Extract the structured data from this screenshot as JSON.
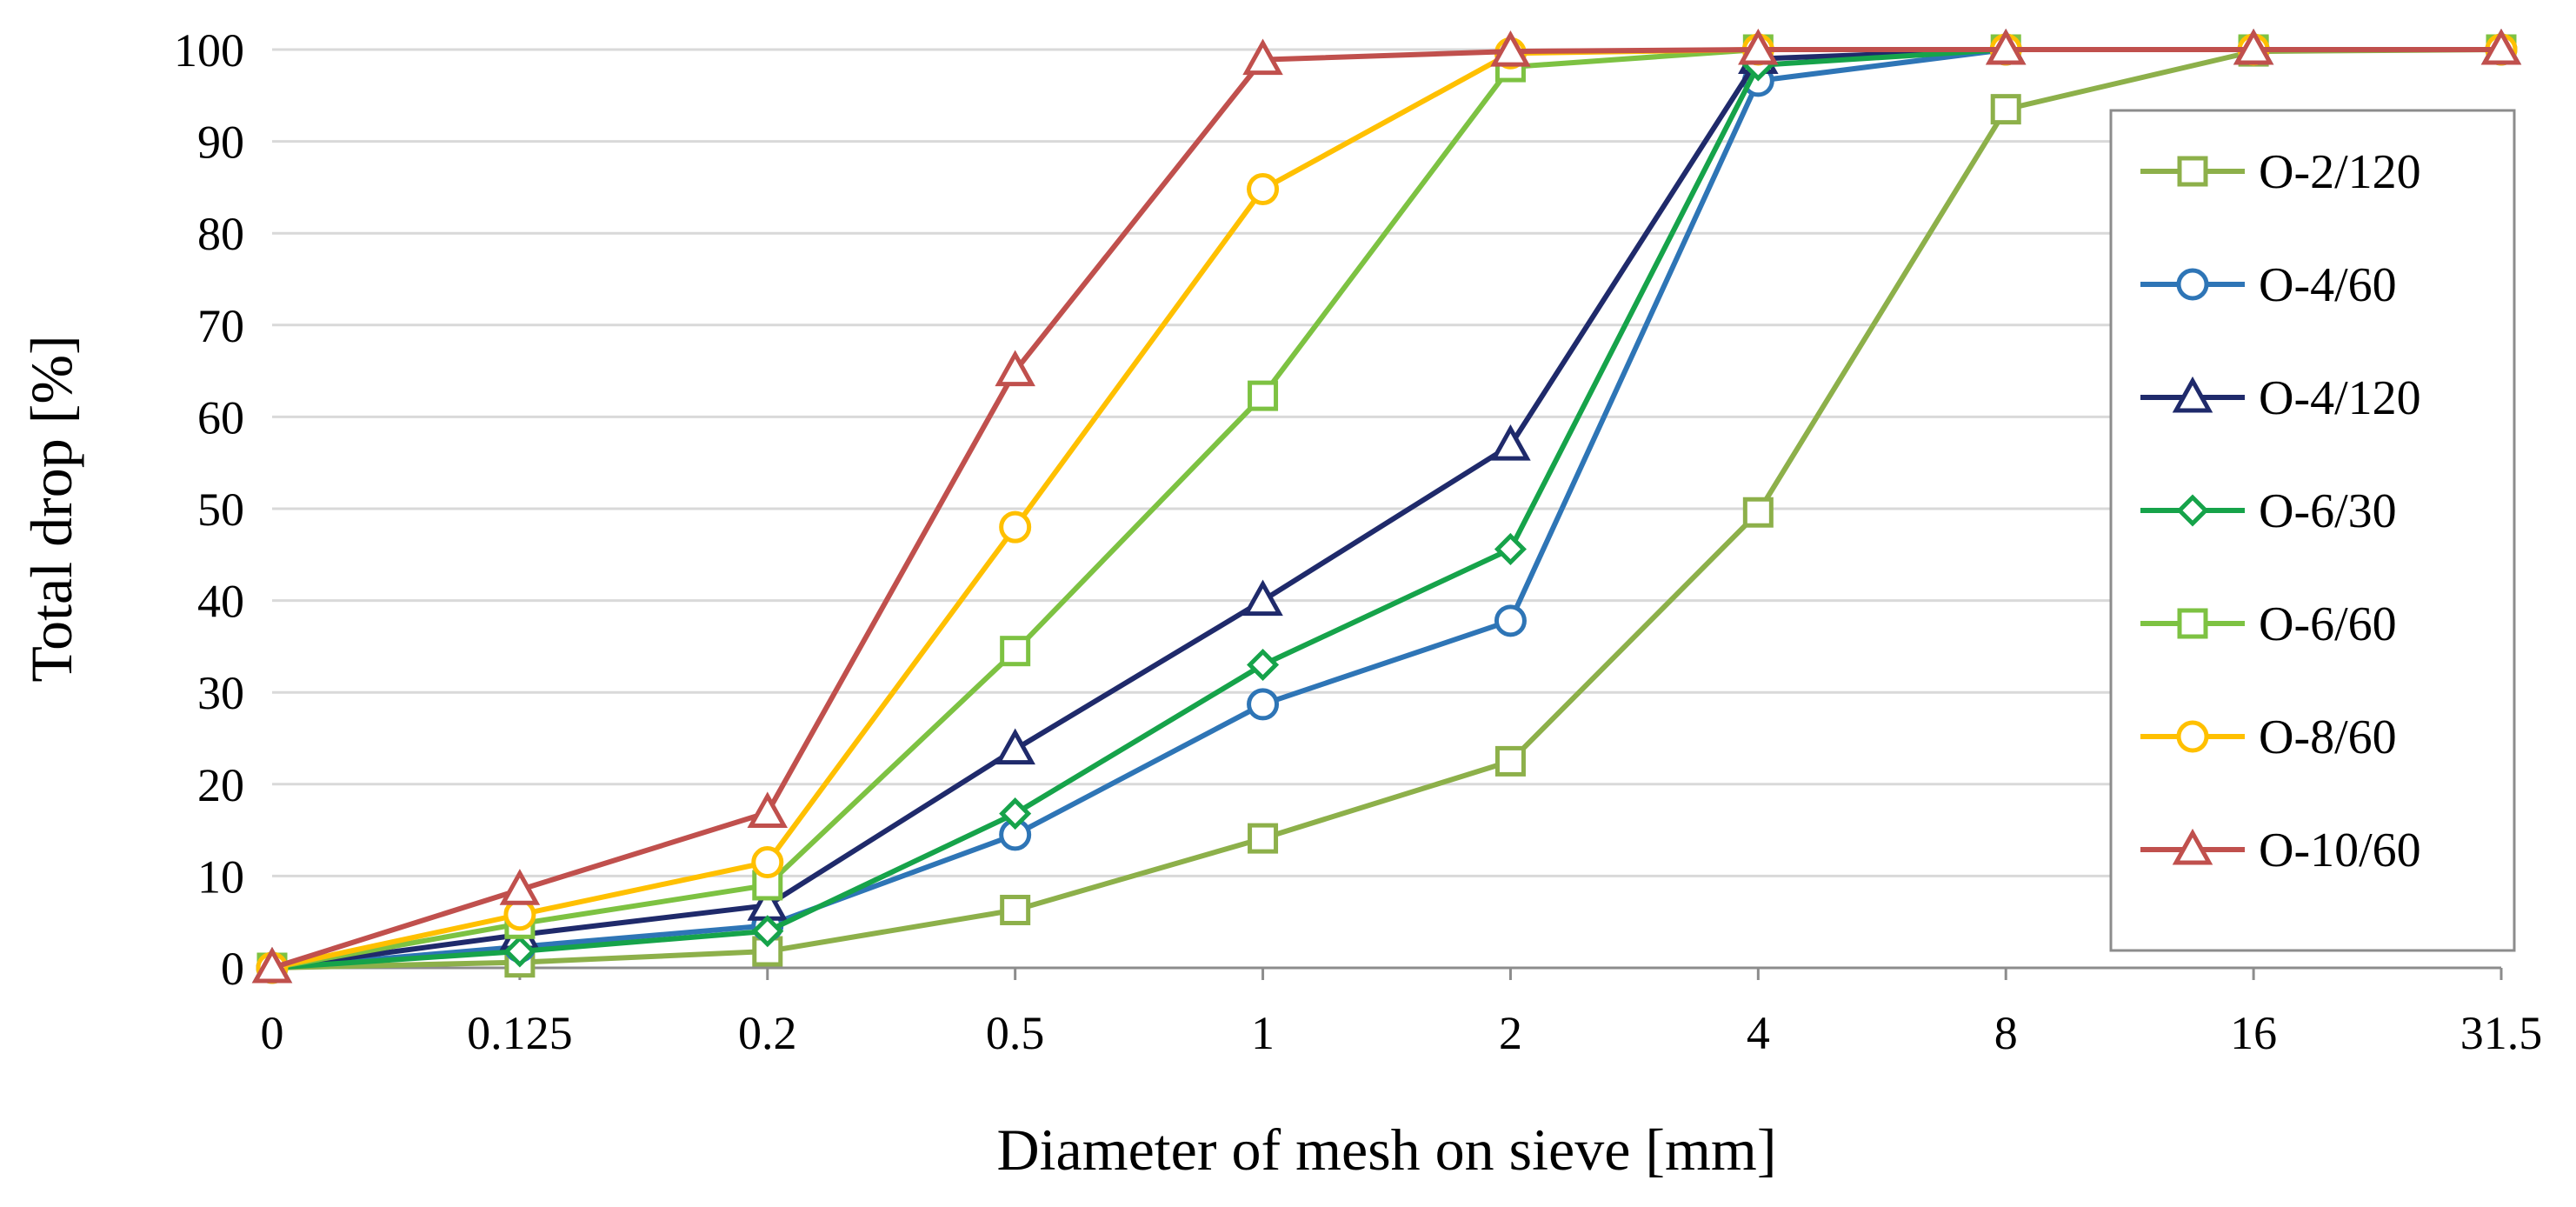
{
  "chart_data": {
    "type": "line",
    "title": "",
    "xlabel": "Diameter of mesh on sieve [mm]",
    "ylabel": "Total drop [%]",
    "categories": [
      "0",
      "0.125",
      "0.2",
      "0.5",
      "1",
      "2",
      "4",
      "8",
      "16",
      "31.5"
    ],
    "ylim": [
      0,
      100
    ],
    "yticks": [
      "0",
      "10",
      "20",
      "30",
      "40",
      "50",
      "60",
      "70",
      "80",
      "90",
      "100"
    ],
    "grid": true,
    "legend_position": "right",
    "series": [
      {
        "name": "O-2/120",
        "color": "#8db04a",
        "marker": "square",
        "values": [
          0,
          0.6,
          1.8,
          6.3,
          14.1,
          22.5,
          49.6,
          93.5,
          99.8,
          100
        ]
      },
      {
        "name": "O-4/60",
        "color": "#2e75b6",
        "marker": "circle",
        "values": [
          0,
          2.3,
          4.6,
          14.5,
          28.7,
          37.8,
          96.6,
          100,
          100,
          100
        ]
      },
      {
        "name": "O-4/120",
        "color": "#1f2a6b",
        "marker": "triangle",
        "values": [
          0,
          3.6,
          6.8,
          23.8,
          40.0,
          56.9,
          99.0,
          100,
          100,
          100
        ]
      },
      {
        "name": "O-6/30",
        "color": "#16a34a",
        "marker": "diamond",
        "values": [
          0,
          1.8,
          4.0,
          16.8,
          33.0,
          45.6,
          98.3,
          100,
          100,
          100
        ]
      },
      {
        "name": "O-6/60",
        "color": "#7dc242",
        "marker": "square",
        "values": [
          0,
          4.8,
          9.0,
          34.5,
          62.3,
          98.1,
          100,
          100,
          100,
          100
        ]
      },
      {
        "name": "O-8/60",
        "color": "#ffc000",
        "marker": "circle",
        "values": [
          0,
          5.8,
          11.5,
          48.0,
          84.8,
          99.6,
          100,
          100,
          100,
          100
        ]
      },
      {
        "name": "O-10/60",
        "color": "#c0504d",
        "marker": "triangle",
        "values": [
          0,
          8.5,
          16.9,
          65.0,
          98.9,
          99.8,
          100,
          100,
          100,
          100
        ]
      }
    ]
  }
}
